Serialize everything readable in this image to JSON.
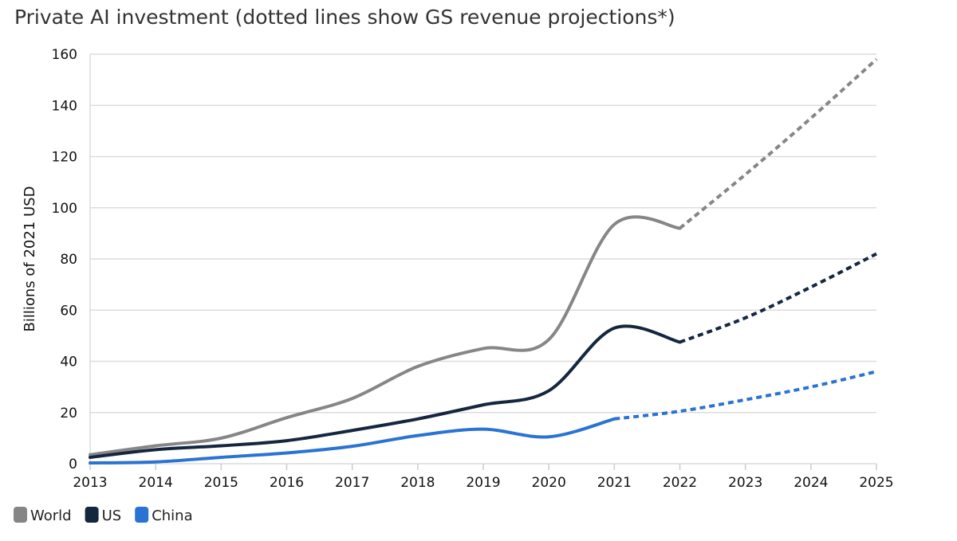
{
  "chart_data": {
    "type": "line",
    "title": "Private AI investment (dotted lines show GS revenue projections*)",
    "xlabel": "",
    "ylabel": "Billions of 2021 USD",
    "x": [
      2013,
      2014,
      2015,
      2016,
      2017,
      2018,
      2019,
      2020,
      2021,
      2022,
      2023,
      2024,
      2025
    ],
    "xlim": [
      2013,
      2025
    ],
    "ylim": [
      0,
      160
    ],
    "yticks": [
      0,
      20,
      40,
      60,
      80,
      100,
      120,
      140,
      160
    ],
    "grid": "horizontal",
    "legend_position": "bottom-left",
    "series": [
      {
        "name": "World",
        "color": "#868686",
        "projection_from": 2022,
        "values": [
          3.5,
          7,
          10,
          18,
          25.5,
          38,
          45,
          48.5,
          93.5,
          92,
          113,
          135,
          158
        ]
      },
      {
        "name": "US",
        "color": "#15263f",
        "projection_from": 2022,
        "values": [
          2.5,
          5.5,
          7,
          9,
          13,
          17.5,
          23,
          28.5,
          53,
          47.5,
          57,
          69,
          82
        ]
      },
      {
        "name": "China",
        "color": "#2a73d2",
        "projection_from": 2021,
        "values": [
          0.3,
          0.7,
          2.5,
          4.2,
          6.8,
          11,
          13.5,
          10.5,
          17.5,
          20.5,
          25,
          30,
          36
        ]
      }
    ]
  }
}
